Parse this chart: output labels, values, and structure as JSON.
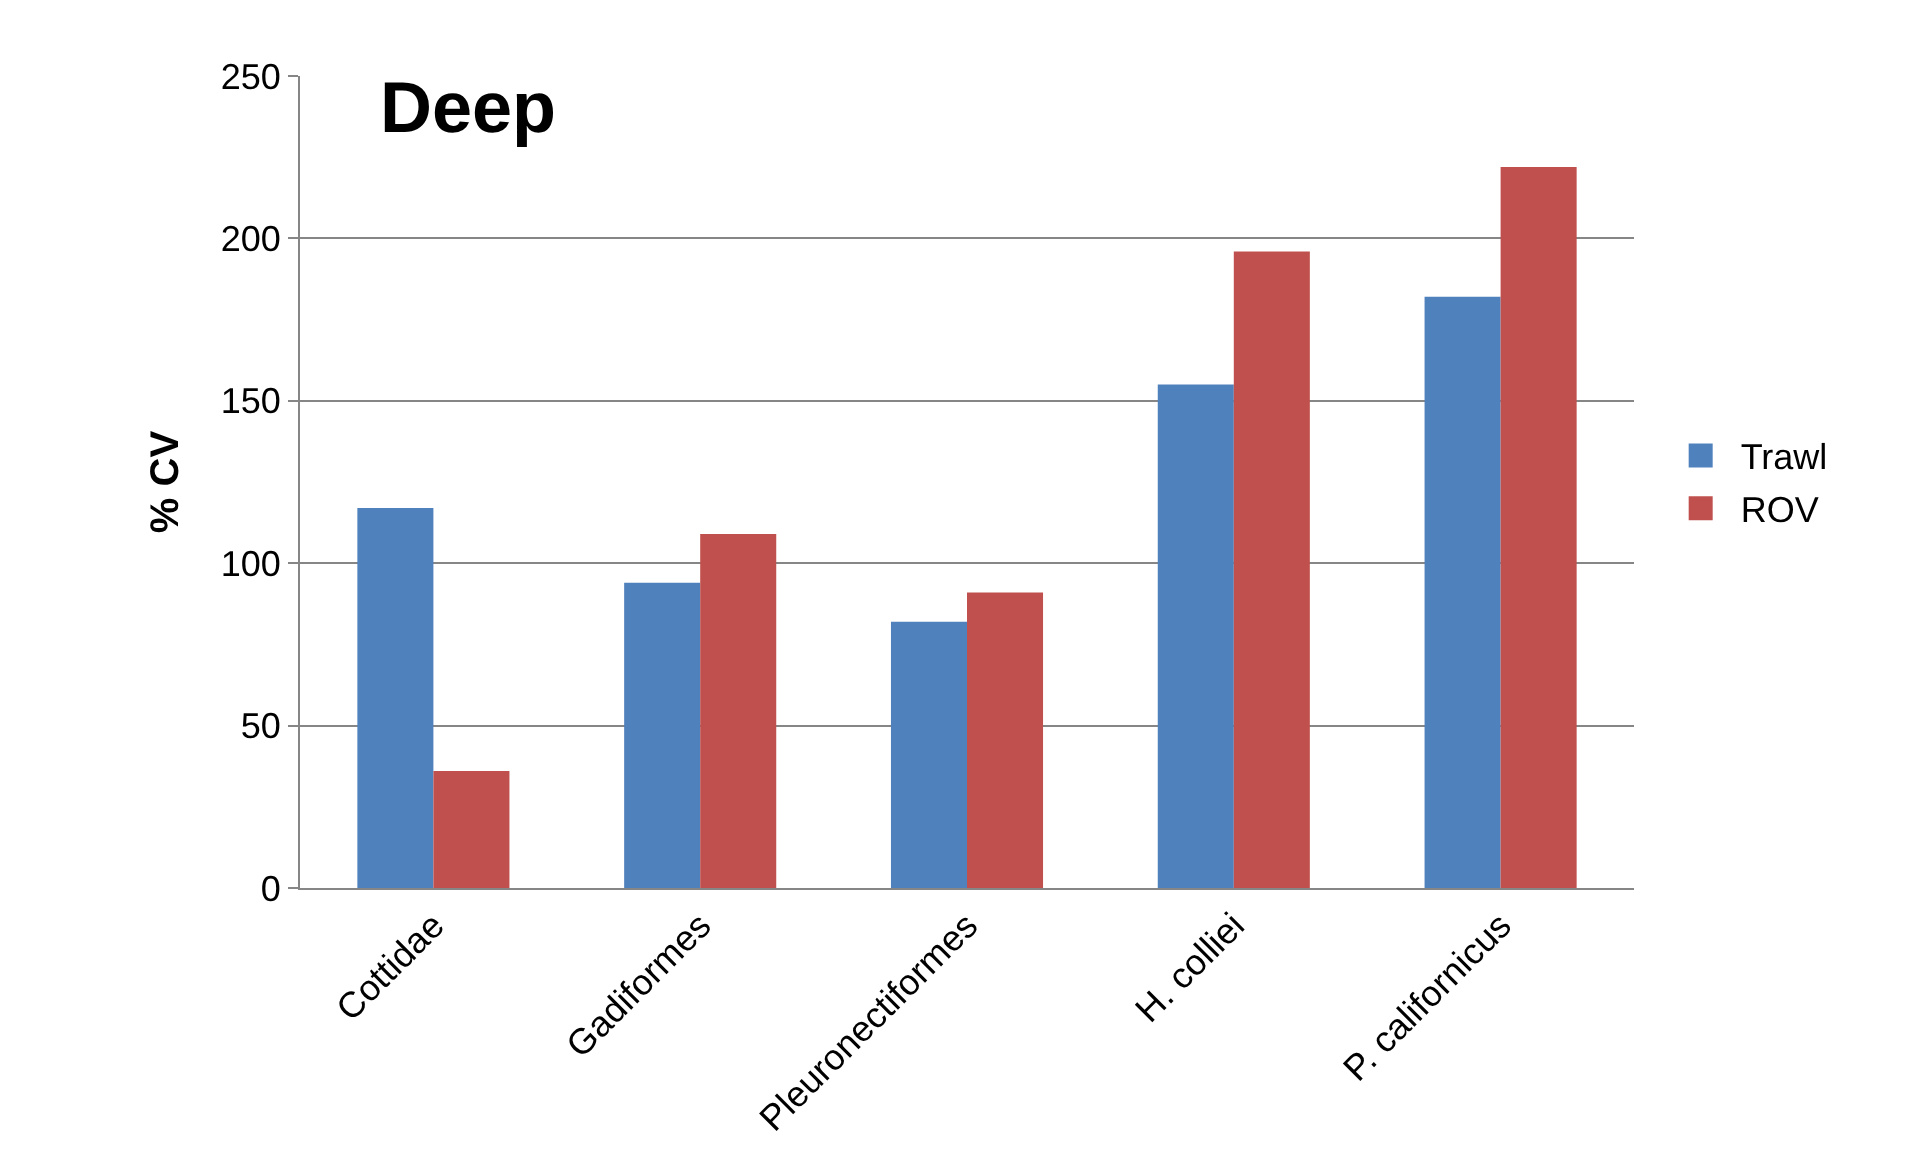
{
  "chart_data": {
    "type": "bar",
    "title": "Deep",
    "ylabel": "% CV",
    "categories": [
      "Cottidae",
      "Gadiformes",
      "Pleuronectiformes",
      "H. colliei",
      "P. californicus"
    ],
    "series": [
      {
        "name": "Trawl",
        "color": "#4f81bd",
        "values": [
          117,
          94,
          82,
          155,
          182
        ]
      },
      {
        "name": "ROV",
        "color": "#c0504d",
        "values": [
          36,
          109,
          91,
          196,
          222
        ]
      }
    ],
    "ylim": [
      0,
      250
    ],
    "yticks": [
      0,
      50,
      100,
      150,
      200,
      250
    ],
    "grid": "y",
    "legend": "right"
  }
}
